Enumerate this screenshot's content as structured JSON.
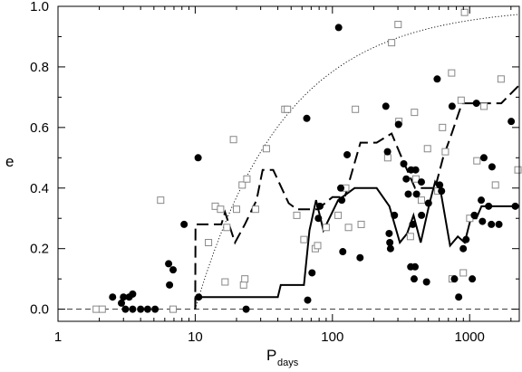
{
  "chart_data": {
    "type": "scatter",
    "title": "",
    "xlabel": "P",
    "xlabel_sub": "days",
    "ylabel": "e",
    "xscale": "log",
    "xlim": [
      1,
      2300
    ],
    "ylim": [
      -0.04,
      1.0
    ],
    "x_ticks": [
      1,
      10,
      100,
      1000
    ],
    "x_tick_labels": [
      "1",
      "10",
      "100",
      "1000"
    ],
    "y_ticks": [
      0.0,
      0.2,
      0.4,
      0.6,
      0.8,
      1.0
    ],
    "y_tick_labels": [
      "0.0",
      "0.2",
      "0.4",
      "0.6",
      "0.8",
      "1.0"
    ],
    "colors": {
      "filled": "#000000",
      "open": "#888888",
      "axis": "#000000"
    },
    "series": [
      {
        "marker": "filled-circle",
        "points": [
          [
            2.5,
            0.04
          ],
          [
            2.9,
            0.02
          ],
          [
            3.0,
            0.04
          ],
          [
            3.1,
            0.0
          ],
          [
            3.3,
            0.04
          ],
          [
            3.5,
            0.05
          ],
          [
            3.5,
            0.0
          ],
          [
            4.0,
            0.0
          ],
          [
            4.5,
            0.0
          ],
          [
            5.1,
            0.0
          ],
          [
            6.4,
            0.15
          ],
          [
            6.5,
            0.08
          ],
          [
            6.9,
            0.13
          ],
          [
            8.3,
            0.28
          ],
          [
            10.5,
            0.5
          ],
          [
            10.6,
            0.04
          ],
          [
            23.5,
            0.0
          ],
          [
            65,
            0.63
          ],
          [
            66,
            0.03
          ],
          [
            71,
            0.12
          ],
          [
            79,
            0.3
          ],
          [
            81,
            0.34
          ],
          [
            111,
            0.93
          ],
          [
            115,
            0.4
          ],
          [
            117,
            0.36
          ],
          [
            119,
            0.19
          ],
          [
            128,
            0.51
          ],
          [
            159,
            0.17
          ],
          [
            245,
            0.67
          ],
          [
            252,
            0.52
          ],
          [
            259,
            0.25
          ],
          [
            262,
            0.22
          ],
          [
            265,
            0.2
          ],
          [
            283,
            0.31
          ],
          [
            303,
            0.61
          ],
          [
            331,
            0.48
          ],
          [
            345,
            0.43
          ],
          [
            357,
            0.38
          ],
          [
            372,
            0.14
          ],
          [
            374,
            0.46
          ],
          [
            385,
            0.28
          ],
          [
            394,
            0.1
          ],
          [
            400,
            0.14
          ],
          [
            404,
            0.46
          ],
          [
            410,
            0.38
          ],
          [
            445,
            0.42
          ],
          [
            446,
            0.31
          ],
          [
            485,
            0.09
          ],
          [
            501,
            0.35
          ],
          [
            580,
            0.76
          ],
          [
            605,
            0.41
          ],
          [
            624,
            0.39
          ],
          [
            745,
            0.67
          ],
          [
            775,
            0.1
          ],
          [
            832,
            0.04
          ],
          [
            898,
            0.2
          ],
          [
            942,
            0.23
          ],
          [
            1045,
            0.1
          ],
          [
            1082,
            0.31
          ],
          [
            1120,
            0.68
          ],
          [
            1215,
            0.36
          ],
          [
            1239,
            0.29
          ],
          [
            1270,
            0.5
          ],
          [
            1375,
            0.34
          ],
          [
            1440,
            0.28
          ],
          [
            1455,
            0.47
          ],
          [
            1635,
            0.28
          ],
          [
            2010,
            0.62
          ],
          [
            2150,
            0.34
          ]
        ]
      },
      {
        "marker": "open-square",
        "points": [
          [
            1.9,
            0.0
          ],
          [
            2.1,
            0.0
          ],
          [
            5.6,
            0.36
          ],
          [
            6.9,
            0.0
          ],
          [
            12.5,
            0.22
          ],
          [
            14.0,
            0.34
          ],
          [
            15.3,
            0.33
          ],
          [
            16.5,
            0.09
          ],
          [
            17.0,
            0.27
          ],
          [
            19.0,
            0.56
          ],
          [
            20.0,
            0.33
          ],
          [
            22.0,
            0.41
          ],
          [
            22.5,
            0.08
          ],
          [
            23.0,
            0.1
          ],
          [
            23.8,
            0.43
          ],
          [
            27.5,
            0.33
          ],
          [
            33.0,
            0.53
          ],
          [
            45.0,
            0.66
          ],
          [
            47.0,
            0.66
          ],
          [
            55.0,
            0.31
          ],
          [
            62.0,
            0.23
          ],
          [
            75.0,
            0.2
          ],
          [
            78.0,
            0.21
          ],
          [
            90.0,
            0.27
          ],
          [
            110.0,
            0.31
          ],
          [
            125.0,
            0.4
          ],
          [
            131.0,
            0.27
          ],
          [
            147.0,
            0.66
          ],
          [
            162.0,
            0.28
          ],
          [
            253.0,
            0.5
          ],
          [
            270.0,
            0.88
          ],
          [
            301.0,
            0.94
          ],
          [
            305.0,
            0.62
          ],
          [
            370.0,
            0.24
          ],
          [
            396.0,
            0.65
          ],
          [
            406.0,
            0.43
          ],
          [
            445.0,
            0.36
          ],
          [
            493.0,
            0.53
          ],
          [
            586.0,
            0.39
          ],
          [
            634.0,
            0.6
          ],
          [
            665.0,
            0.52
          ],
          [
            739.0,
            0.78
          ],
          [
            746.0,
            0.1
          ],
          [
            867.0,
            0.69
          ],
          [
            899.0,
            0.12
          ],
          [
            918.0,
            0.98
          ],
          [
            1002.0,
            0.3
          ],
          [
            1130.0,
            0.49
          ],
          [
            1272.0,
            0.67
          ],
          [
            1542.0,
            0.41
          ],
          [
            1694.0,
            0.76
          ],
          [
            2250.0,
            0.46
          ]
        ]
      },
      {
        "line": "solid",
        "points": [
          [
            10,
            0.0
          ],
          [
            10.05,
            0.04
          ],
          [
            40,
            0.04
          ],
          [
            42,
            0.08
          ],
          [
            62,
            0.08
          ],
          [
            68,
            0.26
          ],
          [
            76,
            0.36
          ],
          [
            86,
            0.26
          ],
          [
            110,
            0.36
          ],
          [
            145,
            0.4
          ],
          [
            210,
            0.4
          ],
          [
            260,
            0.34
          ],
          [
            310,
            0.22
          ],
          [
            350,
            0.25
          ],
          [
            390,
            0.31
          ],
          [
            440,
            0.22
          ],
          [
            510,
            0.35
          ],
          [
            560,
            0.42
          ],
          [
            620,
            0.38
          ],
          [
            720,
            0.21
          ],
          [
            820,
            0.24
          ],
          [
            920,
            0.22
          ],
          [
            1020,
            0.3
          ],
          [
            1120,
            0.3
          ],
          [
            1220,
            0.34
          ],
          [
            2300,
            0.34
          ]
        ]
      },
      {
        "line": "dashed",
        "points": [
          [
            10,
            0.0
          ],
          [
            10.05,
            0.28
          ],
          [
            15.5,
            0.28
          ],
          [
            16.5,
            0.32
          ],
          [
            19.5,
            0.22
          ],
          [
            23,
            0.28
          ],
          [
            28,
            0.36
          ],
          [
            31,
            0.46
          ],
          [
            37,
            0.46
          ],
          [
            48,
            0.35
          ],
          [
            55,
            0.33
          ],
          [
            78,
            0.33
          ],
          [
            100,
            0.37
          ],
          [
            123,
            0.37
          ],
          [
            160,
            0.55
          ],
          [
            210,
            0.55
          ],
          [
            270,
            0.58
          ],
          [
            320,
            0.5
          ],
          [
            400,
            0.4
          ],
          [
            560,
            0.4
          ],
          [
            640,
            0.5
          ],
          [
            740,
            0.58
          ],
          [
            880,
            0.68
          ],
          [
            1230,
            0.68
          ],
          [
            1700,
            0.68
          ],
          [
            2300,
            0.74
          ]
        ]
      },
      {
        "line": "dotted",
        "function": "e = 1 - (P / 10 days)^(-2/3)",
        "x_range": [
          10,
          2300
        ]
      },
      {
        "line": "reference-dashed",
        "y": 0.0
      }
    ]
  }
}
